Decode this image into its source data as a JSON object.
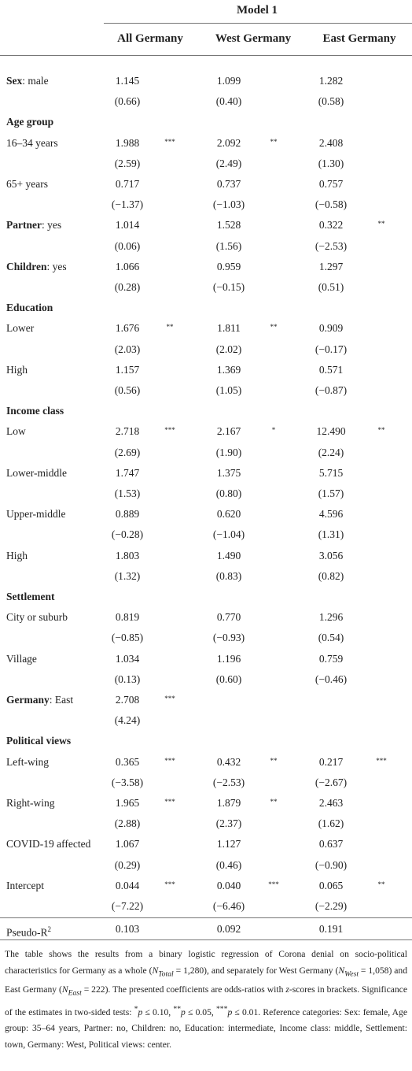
{
  "header": {
    "model": "Model 1",
    "columns": [
      "All Germany",
      "West Germany",
      "East Germany"
    ]
  },
  "table": {
    "rows": [
      {
        "label_bold": "Sex",
        "label": ": male",
        "values": [
          "1.145",
          "1.099",
          "1.282"
        ],
        "stars": [
          null,
          null,
          null
        ],
        "z": [
          "(0.66)",
          "(0.40)",
          "(0.58)"
        ]
      },
      {
        "section": "Age group"
      },
      {
        "label": "16–34 years",
        "values": [
          "1.988",
          "2.092",
          "2.408"
        ],
        "stars": [
          "***",
          "**",
          null
        ],
        "z": [
          "(2.59)",
          "(2.49)",
          "(1.30)"
        ]
      },
      {
        "label": "65+ years",
        "values": [
          "0.717",
          "0.737",
          "0.757"
        ],
        "stars": [
          null,
          null,
          null
        ],
        "z": [
          "(−1.37)",
          "(−1.03)",
          "(−0.58)"
        ]
      },
      {
        "label_bold": "Partner",
        "label": ": yes",
        "values": [
          "1.014",
          "1.528",
          "0.322"
        ],
        "stars": [
          null,
          null,
          "**"
        ],
        "z": [
          "(0.06)",
          "(1.56)",
          "(−2.53)"
        ]
      },
      {
        "label_bold": "Children",
        "label": ": yes",
        "values": [
          "1.066",
          "0.959",
          "1.297"
        ],
        "stars": [
          null,
          null,
          null
        ],
        "z": [
          "(0.28)",
          "(−0.15)",
          "(0.51)"
        ]
      },
      {
        "section": "Education"
      },
      {
        "label": "Lower",
        "values": [
          "1.676",
          "1.811",
          "0.909"
        ],
        "stars": [
          "**",
          "**",
          null
        ],
        "z": [
          "(2.03)",
          "(2.02)",
          "(−0.17)"
        ]
      },
      {
        "label": "High",
        "values": [
          "1.157",
          "1.369",
          "0.571"
        ],
        "stars": [
          null,
          null,
          null
        ],
        "z": [
          "(0.56)",
          "(1.05)",
          "(−0.87)"
        ]
      },
      {
        "section": "Income class"
      },
      {
        "label": "Low",
        "values": [
          "2.718",
          "2.167",
          "12.490"
        ],
        "stars": [
          "***",
          "*",
          "**"
        ],
        "z": [
          "(2.69)",
          "(1.90)",
          "(2.24)"
        ]
      },
      {
        "label": "Lower-middle",
        "values": [
          "1.747",
          "1.375",
          "5.715"
        ],
        "stars": [
          null,
          null,
          null
        ],
        "z": [
          "(1.53)",
          "(0.80)",
          "(1.57)"
        ]
      },
      {
        "label": "Upper-middle",
        "values": [
          "0.889",
          "0.620",
          "4.596"
        ],
        "stars": [
          null,
          null,
          null
        ],
        "z": [
          "(−0.28)",
          "(−1.04)",
          "(1.31)"
        ]
      },
      {
        "label": "High",
        "values": [
          "1.803",
          "1.490",
          "3.056"
        ],
        "stars": [
          null,
          null,
          null
        ],
        "z": [
          "(1.32)",
          "(0.83)",
          "(0.82)"
        ]
      },
      {
        "section": "Settlement"
      },
      {
        "label": "City or suburb",
        "values": [
          "0.819",
          "0.770",
          "1.296"
        ],
        "stars": [
          null,
          null,
          null
        ],
        "z": [
          "(−0.85)",
          "(−0.93)",
          "(0.54)"
        ]
      },
      {
        "label": "Village",
        "values": [
          "1.034",
          "1.196",
          "0.759"
        ],
        "stars": [
          null,
          null,
          null
        ],
        "z": [
          "(0.13)",
          "(0.60)",
          "(−0.46)"
        ]
      },
      {
        "label_bold": "Germany",
        "label": ": East",
        "values": [
          "2.708",
          null,
          null
        ],
        "stars": [
          "***",
          null,
          null
        ],
        "z": [
          "(4.24)",
          null,
          null
        ]
      },
      {
        "section": "Political views"
      },
      {
        "label": "Left-wing",
        "values": [
          "0.365",
          "0.432",
          "0.217"
        ],
        "stars": [
          "***",
          "**",
          "***"
        ],
        "z": [
          "(−3.58)",
          "(−2.53)",
          "(−2.67)"
        ]
      },
      {
        "label": "Right-wing",
        "values": [
          "1.965",
          "1.879",
          "2.463"
        ],
        "stars": [
          "***",
          "**",
          null
        ],
        "z": [
          "(2.88)",
          "(2.37)",
          "(1.62)"
        ]
      },
      {
        "label": "COVID-19 affected",
        "values": [
          "1.067",
          "1.127",
          "0.637"
        ],
        "stars": [
          null,
          null,
          null
        ],
        "z": [
          "(0.29)",
          "(0.46)",
          "(−0.90)"
        ]
      },
      {
        "label": "Intercept",
        "values": [
          "0.044",
          "0.040",
          "0.065"
        ],
        "stars": [
          "***",
          "***",
          "**"
        ],
        "z": [
          "(−7.22)",
          "(−6.46)",
          "(−2.29)"
        ]
      }
    ],
    "footer_row": {
      "label": "Pseudo-R",
      "label_sup": "2",
      "values": [
        "0.103",
        "0.092",
        "0.191"
      ]
    }
  },
  "note": [
    "The table shows the results from a binary logistic regression of Corona denial on socio-political characteristics for Germany as a whole (",
    "N",
    "Total",
    " = 1,280), and separately for West Germany (",
    "N",
    "West",
    " = 1,058) and East Germany (",
    "N",
    "East",
    " = 222). The presented coefficients are odds-ratios with ",
    "z",
    "-scores in brackets. Significance of the estimates in two-sided tests: ",
    "*",
    "p",
    " ≤ 0.10, ",
    "**",
    "p",
    " ≤ 0.05, ",
    "***",
    "p",
    " ≤ 0.01. Reference categories: Sex: female, Age group: 35–64 years, Partner: no, Children: no, Education: intermediate, Income class: middle, Settlement: town, Germany: West, Political views: center."
  ]
}
